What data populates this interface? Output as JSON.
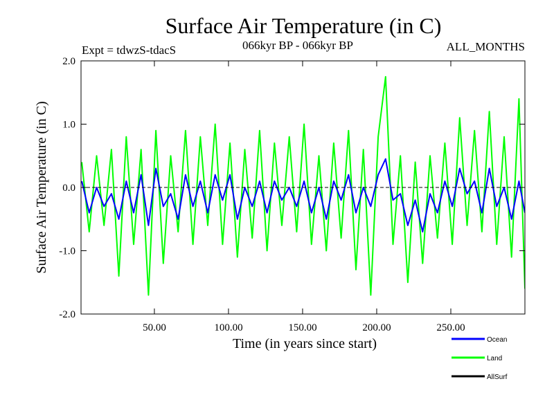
{
  "chart_data": {
    "type": "line",
    "title": "Surface Air Temperature (in C)",
    "subtitle_left": "Expt = tdwzS-tdacS",
    "subtitle_center": "066kyr BP - 066kyr BP",
    "subtitle_right": "ALL_MONTHS",
    "xlabel": "Time (in years since start)",
    "ylabel": "Surface Air Temperature (in C)",
    "xlim": [
      0.5,
      300
    ],
    "ylim": [
      -2.0,
      2.0
    ],
    "x_ticks": [
      50,
      100,
      150,
      200,
      250
    ],
    "x_tick_labels": [
      "50.00",
      "100.00",
      "150.00",
      "200.00",
      "250.00"
    ],
    "y_ticks": [
      -2.0,
      -1.0,
      0.0,
      1.0,
      2.0
    ],
    "y_tick_labels": [
      "-2.0",
      "-1.0",
      "0.0",
      "1.0",
      "2.0"
    ],
    "reference_line": 0.0,
    "grid": false,
    "legend_position": "bottom-right",
    "series": [
      {
        "name": "Land",
        "color": "#00ff00",
        "x": [
          1,
          6,
          11,
          16,
          21,
          26,
          31,
          36,
          41,
          46,
          51,
          56,
          61,
          66,
          71,
          76,
          81,
          86,
          91,
          96,
          101,
          106,
          111,
          116,
          121,
          126,
          131,
          136,
          141,
          146,
          151,
          156,
          161,
          166,
          171,
          176,
          181,
          186,
          191,
          196,
          201,
          206,
          211,
          216,
          221,
          226,
          231,
          236,
          241,
          246,
          251,
          256,
          261,
          266,
          271,
          276,
          281,
          286,
          291,
          296,
          300
        ],
        "values": [
          0.4,
          -0.7,
          0.5,
          -0.6,
          0.6,
          -1.4,
          0.8,
          -0.9,
          0.6,
          -1.7,
          0.9,
          -1.2,
          0.5,
          -0.7,
          0.9,
          -0.9,
          0.8,
          -0.6,
          1.0,
          -0.9,
          0.7,
          -1.1,
          0.6,
          -0.8,
          0.9,
          -1.0,
          0.7,
          -0.6,
          0.8,
          -0.7,
          1.0,
          -0.9,
          0.5,
          -1.0,
          0.7,
          -0.8,
          0.9,
          -1.3,
          0.6,
          -1.7,
          0.8,
          1.75,
          -0.9,
          0.5,
          -1.5,
          0.4,
          -1.2,
          0.5,
          -0.8,
          0.7,
          -0.9,
          1.1,
          -0.6,
          0.9,
          -0.7,
          1.2,
          -0.9,
          0.8,
          -1.1,
          1.4,
          -1.6
        ]
      },
      {
        "name": "Ocean",
        "color": "#0000ff",
        "x": [
          1,
          6,
          11,
          16,
          21,
          26,
          31,
          36,
          41,
          46,
          51,
          56,
          61,
          66,
          71,
          76,
          81,
          86,
          91,
          96,
          101,
          106,
          111,
          116,
          121,
          126,
          131,
          136,
          141,
          146,
          151,
          156,
          161,
          166,
          171,
          176,
          181,
          186,
          191,
          196,
          201,
          206,
          211,
          216,
          221,
          226,
          231,
          236,
          241,
          246,
          251,
          256,
          261,
          266,
          271,
          276,
          281,
          286,
          291,
          296,
          300
        ],
        "values": [
          0.1,
          -0.4,
          0.0,
          -0.3,
          -0.1,
          -0.5,
          0.1,
          -0.4,
          0.2,
          -0.6,
          0.3,
          -0.3,
          -0.1,
          -0.5,
          0.2,
          -0.3,
          0.1,
          -0.4,
          0.2,
          -0.2,
          0.2,
          -0.5,
          0.0,
          -0.3,
          0.1,
          -0.4,
          0.1,
          -0.2,
          0.0,
          -0.3,
          0.1,
          -0.4,
          0.0,
          -0.5,
          0.1,
          -0.2,
          0.2,
          -0.4,
          0.0,
          -0.3,
          0.2,
          0.45,
          -0.2,
          -0.1,
          -0.6,
          -0.2,
          -0.7,
          -0.1,
          -0.4,
          0.1,
          -0.3,
          0.3,
          -0.1,
          0.1,
          -0.4,
          0.3,
          -0.3,
          0.0,
          -0.5,
          0.1,
          -0.4
        ]
      }
    ],
    "legend": [
      {
        "name": "Ocean",
        "color": "#0000ff"
      },
      {
        "name": "Land",
        "color": "#00ff00"
      },
      {
        "name": "AllSurf",
        "color": "#000000"
      }
    ]
  }
}
